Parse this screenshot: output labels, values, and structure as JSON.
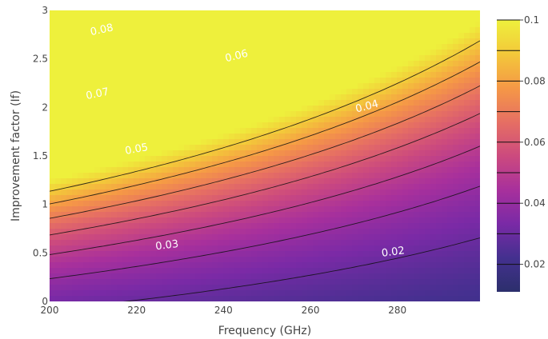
{
  "chart_data": {
    "type": "contour",
    "xlabel": "Frequency (GHz)",
    "ylabel": "Improvement factor (If)",
    "xlim": [
      200,
      299
    ],
    "ylim": [
      0,
      3
    ],
    "x_ticks": [
      "200",
      "220",
      "240",
      "260",
      "280"
    ],
    "y_ticks": [
      "0",
      "0.5",
      "1",
      "1.5",
      "2",
      "2.5",
      "3"
    ],
    "colorbar": {
      "zlim": [
        0.011,
        0.1
      ],
      "ticks": [
        "0.02",
        "0.04",
        "0.06",
        "0.08",
        "0.1"
      ],
      "colormap": "plasma",
      "colors": [
        "#2c2f6c",
        "#44308f",
        "#7a2aa6",
        "#a8309c",
        "#cc4a7e",
        "#e66f63",
        "#f59846",
        "#f3c83a",
        "#eef03c"
      ]
    },
    "contour_levels": [
      0.02,
      0.03,
      0.04,
      0.05,
      0.06,
      0.07,
      0.08,
      0.09
    ],
    "contour_labels": [
      {
        "text": "0.08",
        "x": 212,
        "y": 2.8
      },
      {
        "text": "0.07",
        "x": 211,
        "y": 2.14
      },
      {
        "text": "0.06",
        "x": 243,
        "y": 2.53
      },
      {
        "text": "0.05",
        "x": 220,
        "y": 1.57
      },
      {
        "text": "0.04",
        "x": 273,
        "y": 2.01
      },
      {
        "text": "0.03",
        "x": 227,
        "y": 0.58
      },
      {
        "text": "0.02",
        "x": 279,
        "y": 0.51
      }
    ]
  }
}
